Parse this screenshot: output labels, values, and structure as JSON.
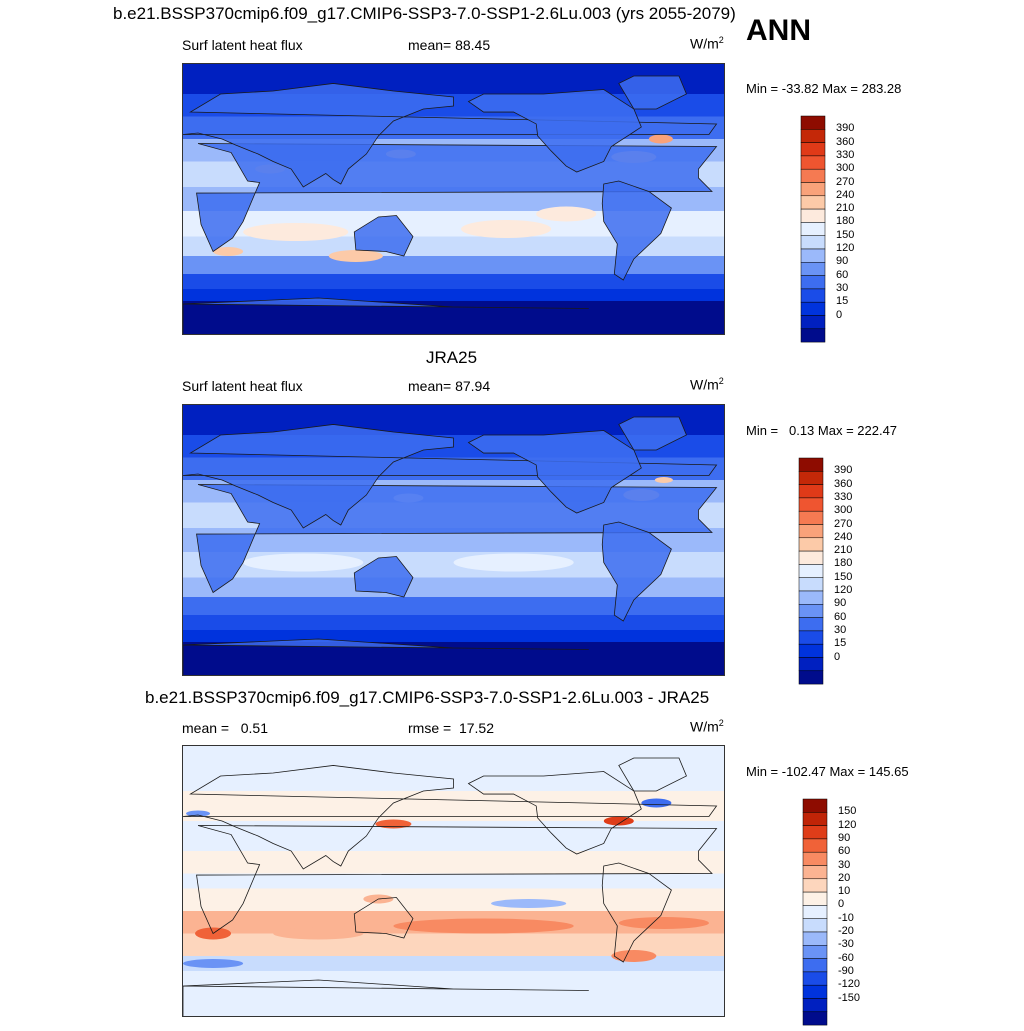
{
  "season": "ANN",
  "colors": {
    "abs_scale": [
      "#000c8c",
      "#0020c0",
      "#0033dd",
      "#1a4ce8",
      "#3d6df0",
      "#6a93f5",
      "#9bb9fa",
      "#c8dcfd",
      "#e6f0ff",
      "#fdeadd",
      "#fccaa8",
      "#f9a27a",
      "#f57a52",
      "#ef5530",
      "#e03a18",
      "#c42808",
      "#8e0c00"
    ],
    "diff_scale": [
      "#000c8c",
      "#0020c0",
      "#0033dd",
      "#1a4ce8",
      "#3d6df0",
      "#6a93f5",
      "#9bb9fa",
      "#c8dcfd",
      "#e6f0ff",
      "#fdf1e6",
      "#fdd6bd",
      "#fbb392",
      "#f88a62",
      "#f06238",
      "#df3d19",
      "#c02407",
      "#8e0c00"
    ],
    "land_line": "#1a1a1a"
  },
  "panels": [
    {
      "title": "b.e21.BSSP370cmip6.f09_g17.CMIP6-SSP3-7.0-SSP1-2.6Lu.003 (yrs 2055-2079)",
      "left_label": "Surf latent heat flux",
      "center_label": "mean=  88.45",
      "units_base": "W/m",
      "units_sup": "2",
      "minmax": "Min = -33.82 Max = 283.28",
      "colorbar_labels": [
        "390",
        "360",
        "330",
        "300",
        "270",
        "240",
        "210",
        "180",
        "150",
        "120",
        "90",
        "60",
        "30",
        "15",
        "0"
      ]
    },
    {
      "title": "JRA25",
      "left_label": "Surf latent heat flux",
      "center_label": "mean=  87.94",
      "units_base": "W/m",
      "units_sup": "2",
      "minmax": "Min =   0.13 Max = 222.47",
      "colorbar_labels": [
        "390",
        "360",
        "330",
        "300",
        "270",
        "240",
        "210",
        "180",
        "150",
        "120",
        "90",
        "60",
        "30",
        "15",
        "0"
      ]
    },
    {
      "title": "b.e21.BSSP370cmip6.f09_g17.CMIP6-SSP3-7.0-SSP1-2.6Lu.003 - JRA25",
      "left_label": "mean =   0.51",
      "center_label": "rmse =  17.52",
      "units_base": "W/m",
      "units_sup": "2",
      "minmax": "Min = -102.47 Max = 145.65",
      "colorbar_labels": [
        "150",
        "120",
        "90",
        "60",
        "30",
        "20",
        "10",
        "0",
        "-10",
        "-20",
        "-30",
        "-60",
        "-90",
        "-120",
        "-150"
      ]
    }
  ],
  "chart_data": [
    {
      "type": "heatmap",
      "title": "b.e21.BSSP370cmip6.f09_g17.CMIP6-SSP3-7.0-SSP1-2.6Lu.003 (yrs 2055-2079)",
      "variable": "Surf latent heat flux",
      "units": "W/m2",
      "mean": 88.45,
      "min": -33.82,
      "max": 283.28,
      "contour_levels": [
        0,
        15,
        30,
        60,
        90,
        120,
        150,
        180,
        210,
        240,
        270,
        300,
        330,
        360,
        390
      ]
    },
    {
      "type": "heatmap",
      "title": "JRA25",
      "variable": "Surf latent heat flux",
      "units": "W/m2",
      "mean": 87.94,
      "min": 0.13,
      "max": 222.47,
      "contour_levels": [
        0,
        15,
        30,
        60,
        90,
        120,
        150,
        180,
        210,
        240,
        270,
        300,
        330,
        360,
        390
      ]
    },
    {
      "type": "heatmap",
      "title": "b.e21.BSSP370cmip6.f09_g17.CMIP6-SSP3-7.0-SSP1-2.6Lu.003 - JRA25",
      "units": "W/m2",
      "mean": 0.51,
      "rmse": 17.52,
      "min": -102.47,
      "max": 145.65,
      "contour_levels": [
        -150,
        -120,
        -90,
        -60,
        -30,
        -20,
        -10,
        0,
        10,
        20,
        30,
        60,
        90,
        120,
        150
      ]
    }
  ]
}
